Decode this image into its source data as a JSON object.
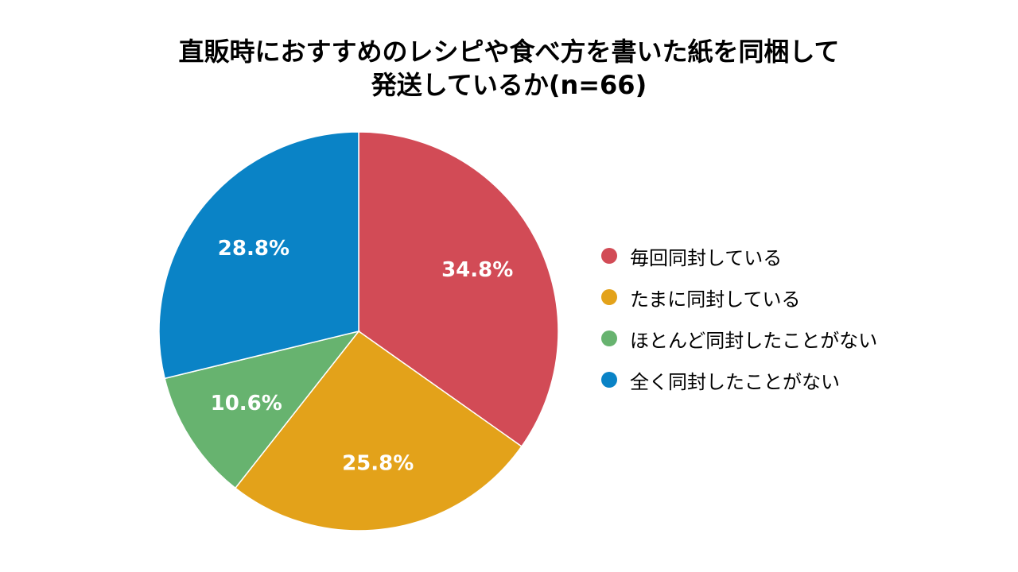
{
  "chart_data": {
    "type": "pie",
    "title_lines": [
      "直販時におすすめのレシピや食べ方を書いた紙を同梱して",
      "発送しているか(n=66)"
    ],
    "n": 66,
    "categories": [
      "毎回同封している",
      "たまに同封している",
      "ほとんど同封したことがない",
      "全く同封したことがない"
    ],
    "values": [
      34.8,
      25.8,
      10.6,
      28.8
    ],
    "data_labels": [
      "34.8%",
      "25.8%",
      "10.6%",
      "28.8%"
    ],
    "colors": [
      "#d24b56",
      "#e3a21a",
      "#67b36f",
      "#0a83c6"
    ],
    "start_angle": "12 o'clock",
    "direction": "clockwise",
    "legend_position": "right"
  }
}
